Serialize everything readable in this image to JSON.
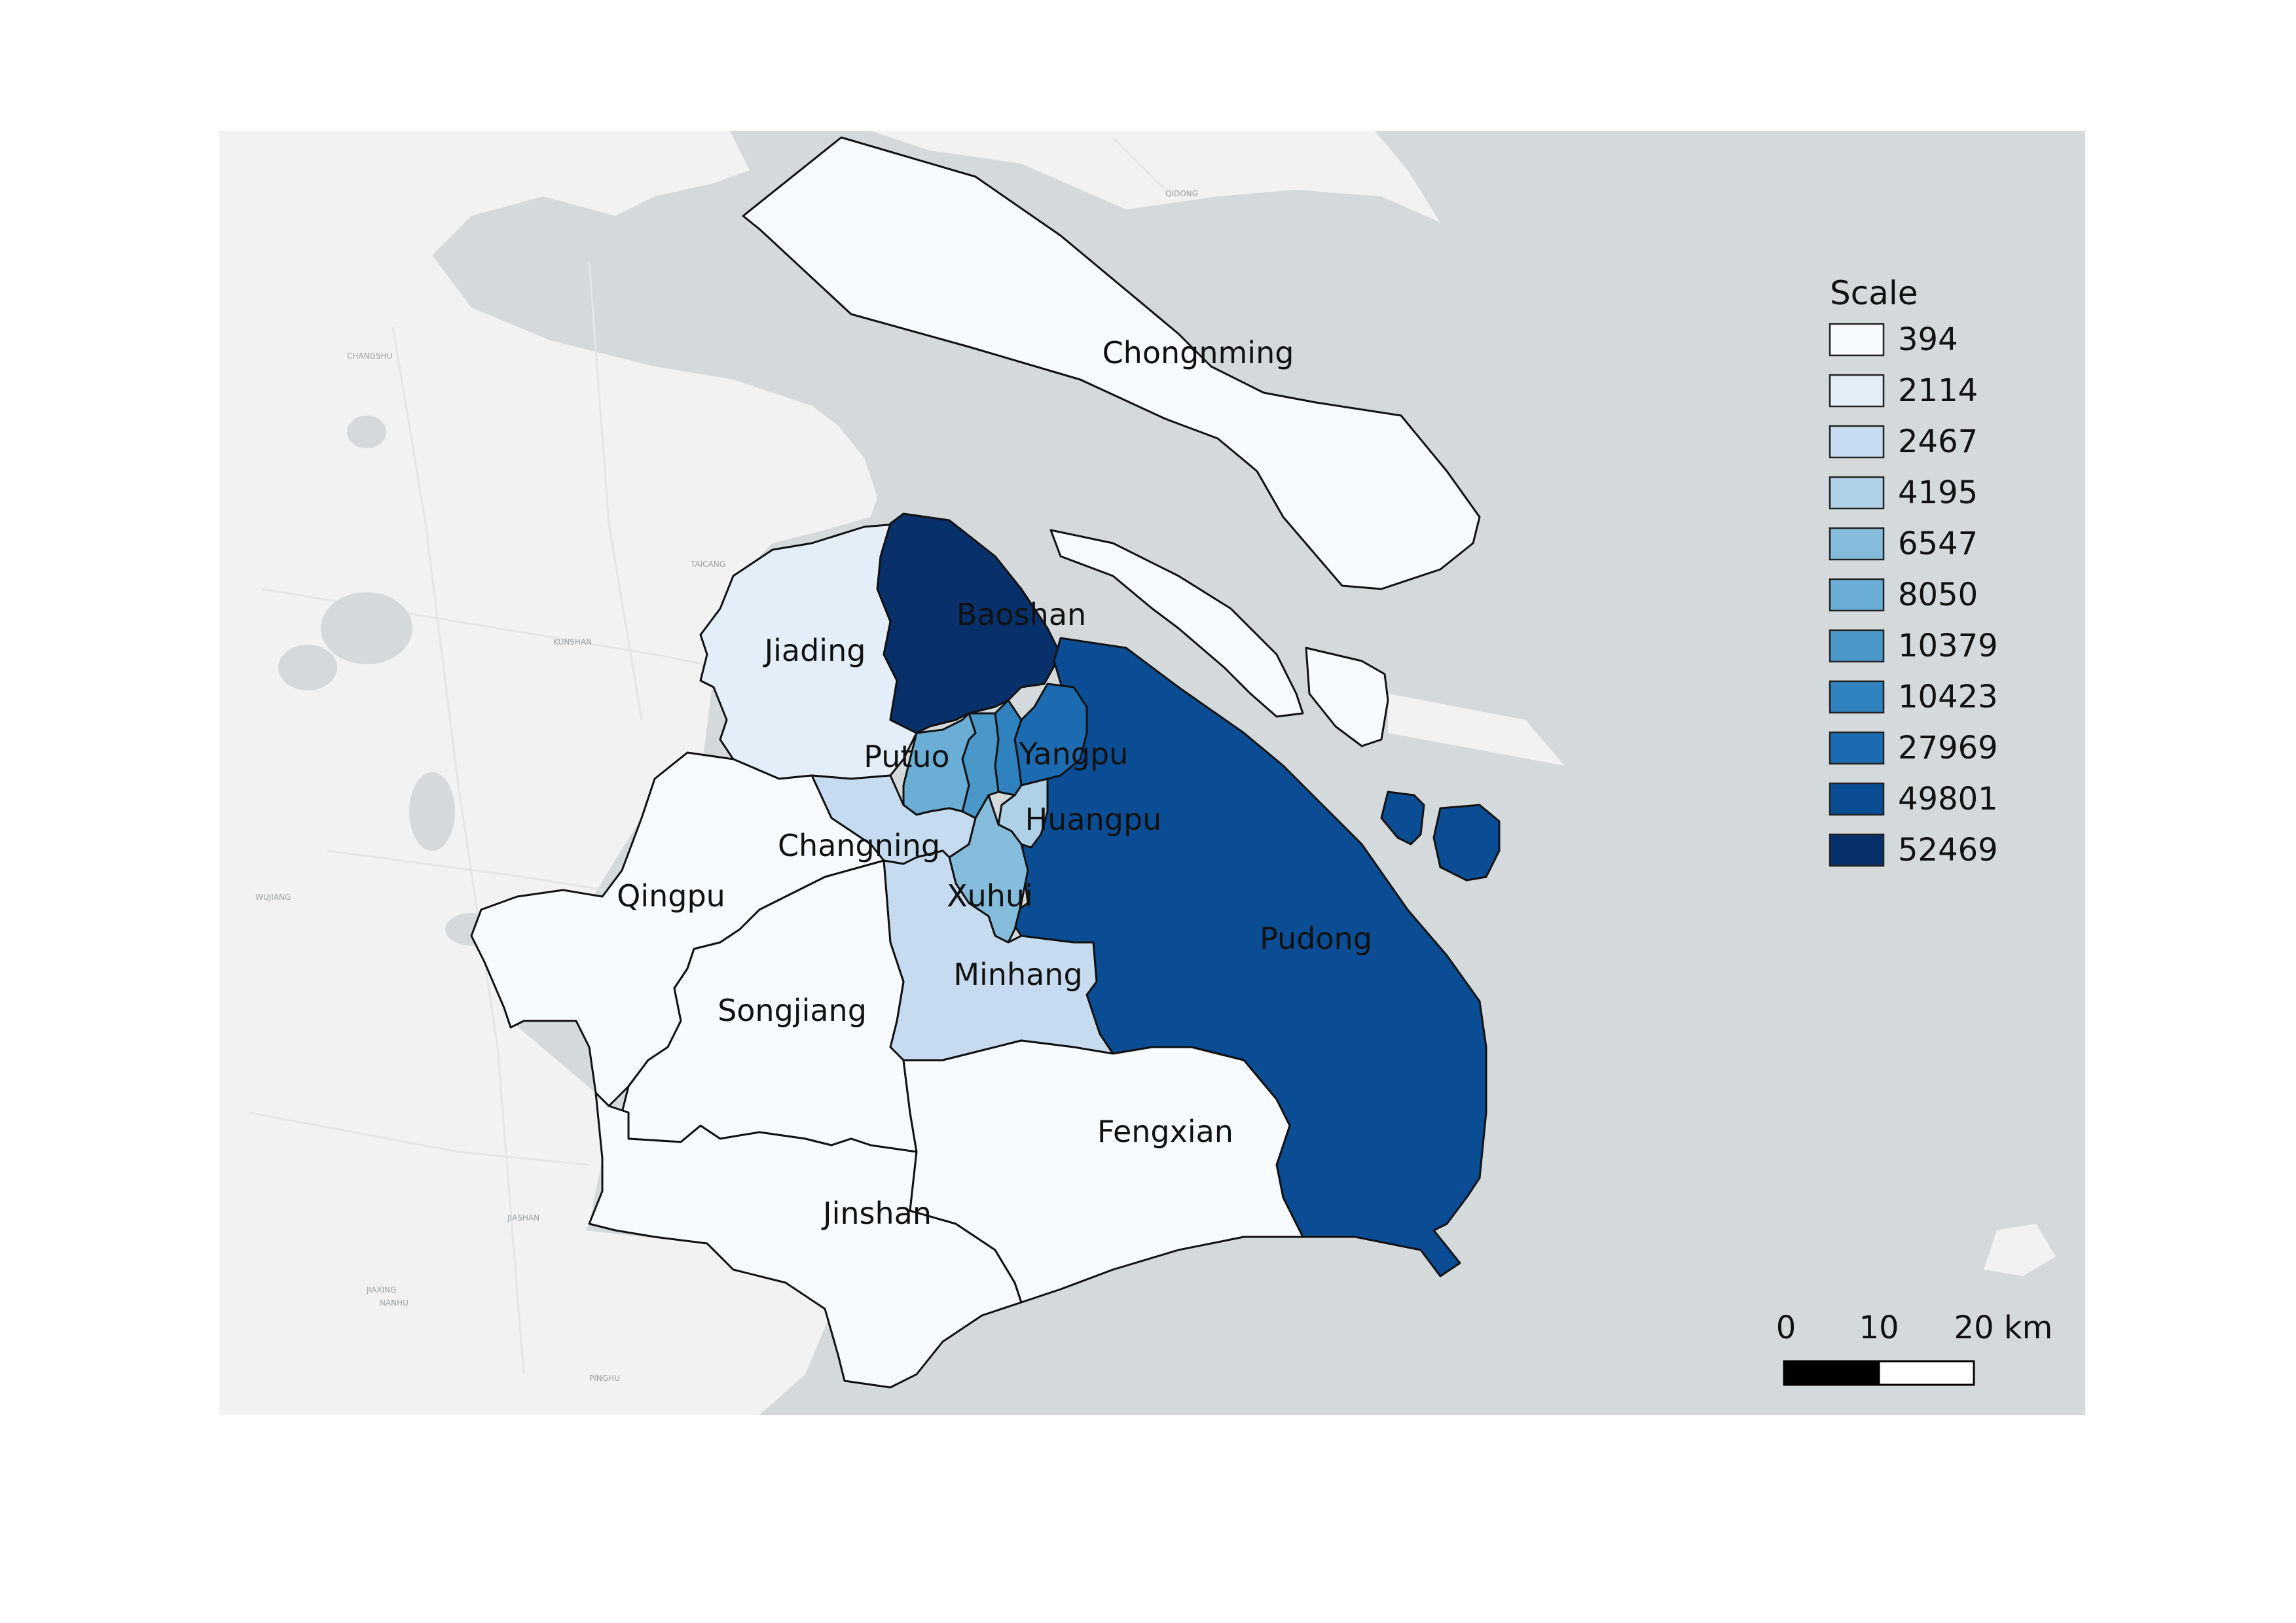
{
  "legend": {
    "title": "Scale",
    "items": [
      {
        "label": "394",
        "color": "#f7fbff"
      },
      {
        "label": "2114",
        "color": "#e4eef9"
      },
      {
        "label": "2467",
        "color": "#c6dbef"
      },
      {
        "label": "4195",
        "color": "#afd1e7"
      },
      {
        "label": "6547",
        "color": "#85bcdb"
      },
      {
        "label": "8050",
        "color": "#6aaed6"
      },
      {
        "label": "10379",
        "color": "#4a98c9"
      },
      {
        "label": "10423",
        "color": "#3082be"
      },
      {
        "label": "27969",
        "color": "#1c6ab0"
      },
      {
        "label": "49801",
        "color": "#0b4d94"
      },
      {
        "label": "52469",
        "color": "#08306b"
      }
    ]
  },
  "scalebar": {
    "labels": [
      "0",
      "10",
      "20 km"
    ]
  },
  "colors": {
    "water": "#d4d9dc",
    "land": "#f2f2f2",
    "outline": "#111111"
  },
  "districts": [
    {
      "key": "chongming",
      "name": "Chongnming",
      "value": 394
    },
    {
      "key": "jiading",
      "name": "Jiading",
      "value": 2114
    },
    {
      "key": "baoshan",
      "name": "Baoshan",
      "value": 52469
    },
    {
      "key": "pudong",
      "name": "Pudong",
      "value": 49801
    },
    {
      "key": "yangpu",
      "name": "Yangpu",
      "value": 27969
    },
    {
      "key": "putuo",
      "name": "Putuo",
      "value": 8050
    },
    {
      "key": "hongkou",
      "name": "",
      "value": 10423
    },
    {
      "key": "jingan",
      "name": "",
      "value": 10379
    },
    {
      "key": "huangpu",
      "name": "Huangpu",
      "value": 4195
    },
    {
      "key": "xuhui",
      "name": "Xuhui",
      "value": 6547
    },
    {
      "key": "changning",
      "name": "Changning",
      "value": 2467
    },
    {
      "key": "minhang",
      "name": "Minhang",
      "value": 2467
    },
    {
      "key": "qingpu",
      "name": "Qingpu",
      "value": 394
    },
    {
      "key": "songjiang",
      "name": "Songjiang",
      "value": 394
    },
    {
      "key": "jinshan",
      "name": "Jinshan",
      "value": 394
    },
    {
      "key": "fengxian",
      "name": "Fengxian",
      "value": 394
    }
  ],
  "basemap_labels": [
    "CHANGSHU",
    "TAICANG",
    "KUNSHAN",
    "QIDONG",
    "JIASHAN",
    "PINGHU",
    "WUJIANG",
    "NANHU",
    "JIAXING"
  ]
}
